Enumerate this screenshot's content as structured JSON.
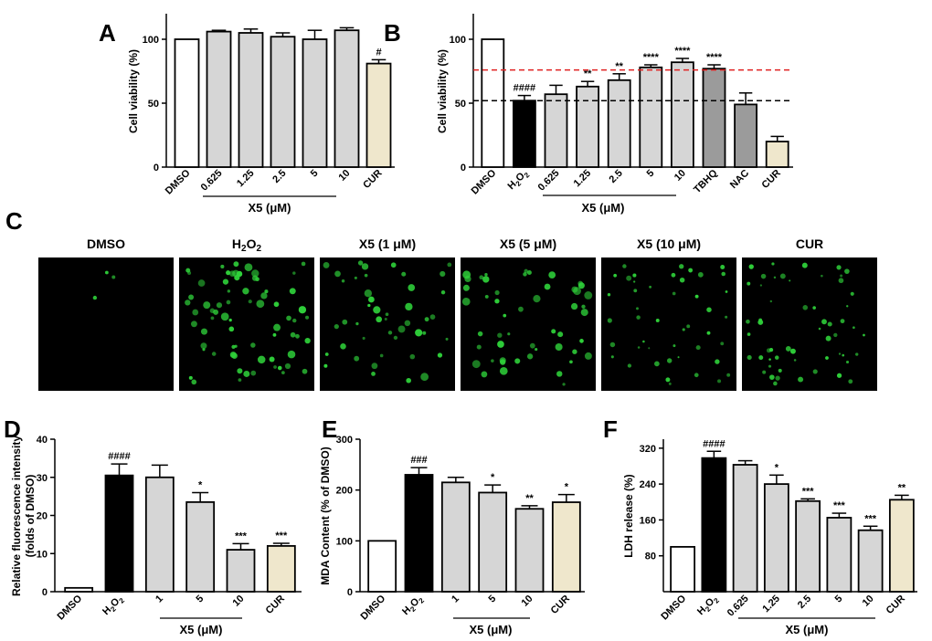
{
  "colors": {
    "white": "#ffffff",
    "light_gray": "#d6d6d6",
    "dark_gray": "#9b9b9b",
    "black": "#000000",
    "beige": "#efe7cc",
    "red_dash": "#e02020",
    "fluor_green": "#2fd23a",
    "image_bg": "#000000"
  },
  "chart_data": [
    {
      "panel": "A",
      "type": "bar",
      "categories": [
        "DMSO",
        "0.625",
        "1.25",
        "2.5",
        "5",
        "10",
        "CUR"
      ],
      "values": [
        100,
        106,
        105,
        102,
        100,
        107,
        81
      ],
      "errors": [
        0,
        1,
        3,
        3,
        7,
        2,
        3
      ],
      "fills": [
        "white",
        "light_gray",
        "light_gray",
        "light_gray",
        "light_gray",
        "light_gray",
        "beige"
      ],
      "annotations": [
        "",
        "",
        "",
        "",
        "",
        "",
        "#"
      ],
      "ylabel": "Cell viability (%)",
      "ylim": [
        0,
        120
      ],
      "yticks": [
        0,
        50,
        100
      ],
      "group_label": "X5 (μM)",
      "group_range": [
        1,
        5
      ]
    },
    {
      "panel": "B",
      "type": "bar",
      "categories": [
        "DMSO",
        "H2O2",
        "0.625",
        "1.25",
        "2.5",
        "5",
        "10",
        "TBHQ",
        "NAC",
        "CUR"
      ],
      "values": [
        100,
        52,
        57,
        63,
        68,
        78,
        82,
        77,
        49,
        20
      ],
      "errors": [
        0,
        4,
        7,
        4,
        5,
        2,
        3,
        3,
        9,
        4
      ],
      "fills": [
        "white",
        "black",
        "light_gray",
        "light_gray",
        "light_gray",
        "light_gray",
        "light_gray",
        "dark_gray",
        "dark_gray",
        "beige"
      ],
      "annotations": [
        "",
        "####",
        "",
        "**",
        "**",
        "****",
        "****",
        "****",
        "",
        ""
      ],
      "ylabel": "Cell viability (%)",
      "ylim": [
        0,
        120
      ],
      "yticks": [
        0,
        50,
        100
      ],
      "group_label": "X5 (μM)",
      "group_range": [
        2,
        6
      ],
      "reference_lines": [
        {
          "y": 76,
          "color": "red_dash"
        },
        {
          "y": 52,
          "color": "black"
        }
      ]
    },
    {
      "panel": "D",
      "type": "bar",
      "categories": [
        "DMSO",
        "H2O2",
        "1",
        "5",
        "10",
        "CUR"
      ],
      "values": [
        1,
        30.5,
        30,
        23.5,
        11,
        12
      ],
      "errors": [
        0,
        3,
        3.2,
        2.5,
        1.6,
        0.7
      ],
      "fills": [
        "white",
        "black",
        "light_gray",
        "light_gray",
        "light_gray",
        "beige"
      ],
      "annotations": [
        "",
        "####",
        "",
        "*",
        "***",
        "***"
      ],
      "ylabel_lines": [
        "Relative fluorescence intensity",
        "(folds of DMSO)"
      ],
      "ylim": [
        0,
        40
      ],
      "yticks": [
        0,
        10,
        20,
        30,
        40
      ],
      "group_label": "X5 (μM)",
      "group_range": [
        2,
        4
      ]
    },
    {
      "panel": "E",
      "type": "bar",
      "categories": [
        "DMSO",
        "H2O2",
        "1",
        "5",
        "10",
        "CUR"
      ],
      "values": [
        100,
        230,
        215,
        195,
        163,
        176
      ],
      "errors": [
        0,
        14,
        10,
        15,
        6,
        15
      ],
      "fills": [
        "white",
        "black",
        "light_gray",
        "light_gray",
        "light_gray",
        "beige"
      ],
      "annotations": [
        "",
        "###",
        "",
        "*",
        "**",
        "*"
      ],
      "ylabel": "MDA Content (% of DMSO)",
      "ylim": [
        0,
        300
      ],
      "yticks": [
        0,
        100,
        200,
        300
      ],
      "group_label": "X5 (μM)",
      "group_range": [
        2,
        4
      ]
    },
    {
      "panel": "F",
      "type": "bar",
      "categories": [
        "DMSO",
        "H2O2",
        "0.625",
        "1.25",
        "2.5",
        "5",
        "10",
        "CUR"
      ],
      "values": [
        100,
        298,
        283,
        240,
        202,
        165,
        137,
        205
      ],
      "errors": [
        0,
        15,
        9,
        20,
        5,
        10,
        9,
        10
      ],
      "fills": [
        "white",
        "black",
        "light_gray",
        "light_gray",
        "light_gray",
        "light_gray",
        "light_gray",
        "beige"
      ],
      "annotations": [
        "",
        "####",
        "",
        "*",
        "***",
        "***",
        "***",
        "**"
      ],
      "ylabel": "LDH release (%)",
      "ylim": [
        0,
        340
      ],
      "yticks": [
        80,
        160,
        240,
        320
      ],
      "group_label": "X5 (μM)",
      "group_range": [
        2,
        6
      ]
    }
  ],
  "panel_c": {
    "label": "C",
    "images": [
      {
        "title": "DMSO",
        "density": 0
      },
      {
        "title": "H2O2",
        "density": 3
      },
      {
        "title": "X5 (1 μM)",
        "density": 2
      },
      {
        "title": "X5 (5 μM)",
        "density": 2
      },
      {
        "title": "X5 (10 μM)",
        "density": 1
      },
      {
        "title": "CUR",
        "density": 1
      }
    ]
  }
}
